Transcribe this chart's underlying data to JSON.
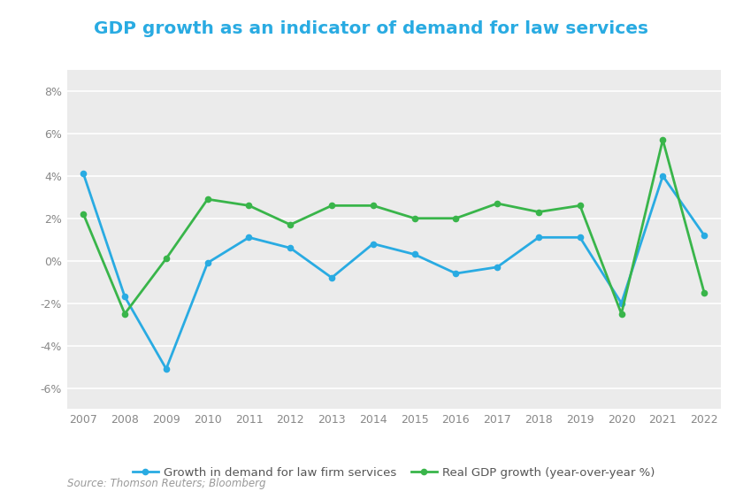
{
  "title": "GDP growth as an indicator of demand for law services",
  "years": [
    2007,
    2008,
    2009,
    2010,
    2011,
    2012,
    2013,
    2014,
    2015,
    2016,
    2017,
    2018,
    2019,
    2020,
    2021,
    2022
  ],
  "law_demand": [
    4.1,
    -1.7,
    -5.1,
    -0.1,
    1.1,
    0.6,
    -0.8,
    0.8,
    0.3,
    -0.6,
    -0.3,
    1.1,
    1.1,
    -2.0,
    4.0,
    1.2
  ],
  "gdp_growth": [
    2.2,
    -2.5,
    0.1,
    2.9,
    2.6,
    1.7,
    2.6,
    2.6,
    2.0,
    2.0,
    2.7,
    2.3,
    2.6,
    -2.5,
    5.7,
    -1.5
  ],
  "law_color": "#29ABE2",
  "gdp_color": "#39B54A",
  "plot_bg_color": "#EBEBEB",
  "fig_bg_color": "#FFFFFF",
  "title_color": "#29ABE2",
  "grid_color": "#FFFFFF",
  "ylim": [
    -7,
    9
  ],
  "yticks": [
    -6,
    -4,
    -2,
    0,
    2,
    4,
    6,
    8
  ],
  "ytick_labels": [
    "-6%",
    "-4%",
    "-2%",
    "0%",
    "2%",
    "4%",
    "6%",
    "8%"
  ],
  "tick_color": "#888888",
  "source_text": "Source: Thomson Reuters; Bloomberg",
  "legend_law": "Growth in demand for law firm services",
  "legend_gdp": "Real GDP growth (year-over-year %)"
}
